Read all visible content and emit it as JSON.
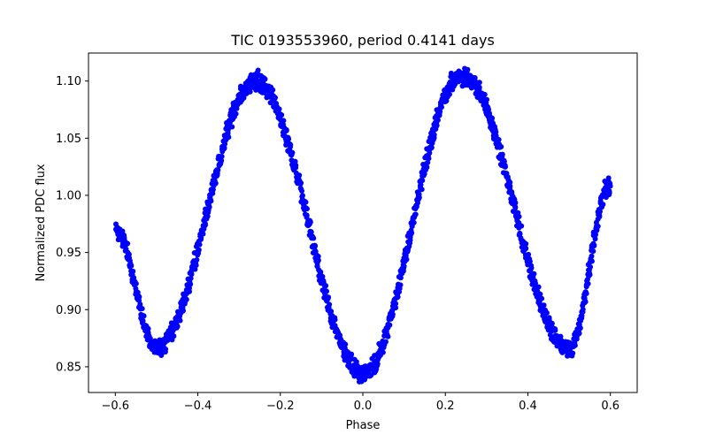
{
  "chart_data": {
    "type": "scatter",
    "title": "TIC 0193553960, period 0.4141 days",
    "xlabel": "Phase",
    "ylabel": "Normalized PDC flux",
    "xlim": [
      -0.665,
      0.665
    ],
    "ylim": [
      0.8275,
      1.1245
    ],
    "xticks": [
      -0.6,
      -0.4,
      -0.2,
      0.0,
      0.2,
      0.4,
      0.6
    ],
    "xtick_labels": [
      "−0.6",
      "−0.4",
      "−0.2",
      "0.0",
      "0.2",
      "0.4",
      "0.6"
    ],
    "yticks": [
      0.85,
      0.9,
      0.95,
      1.0,
      1.05,
      1.1
    ],
    "ytick_labels": [
      "0.85",
      "0.90",
      "0.95",
      "1.00",
      "1.05",
      "1.10"
    ],
    "marker_color": "#0000ff",
    "series": [
      {
        "name": "flux",
        "phase_range": [
          -0.6,
          0.6
        ],
        "key_points": [
          {
            "phase": -0.6,
            "flux": 0.97
          },
          {
            "phase": -0.5,
            "flux": 0.866
          },
          {
            "phase": -0.26,
            "flux": 1.1
          },
          {
            "phase": 0.0,
            "flux": 0.845
          },
          {
            "phase": 0.24,
            "flux": 1.105
          },
          {
            "phase": 0.5,
            "flux": 0.866
          },
          {
            "phase": 0.6,
            "flux": 1.01
          }
        ]
      }
    ]
  }
}
